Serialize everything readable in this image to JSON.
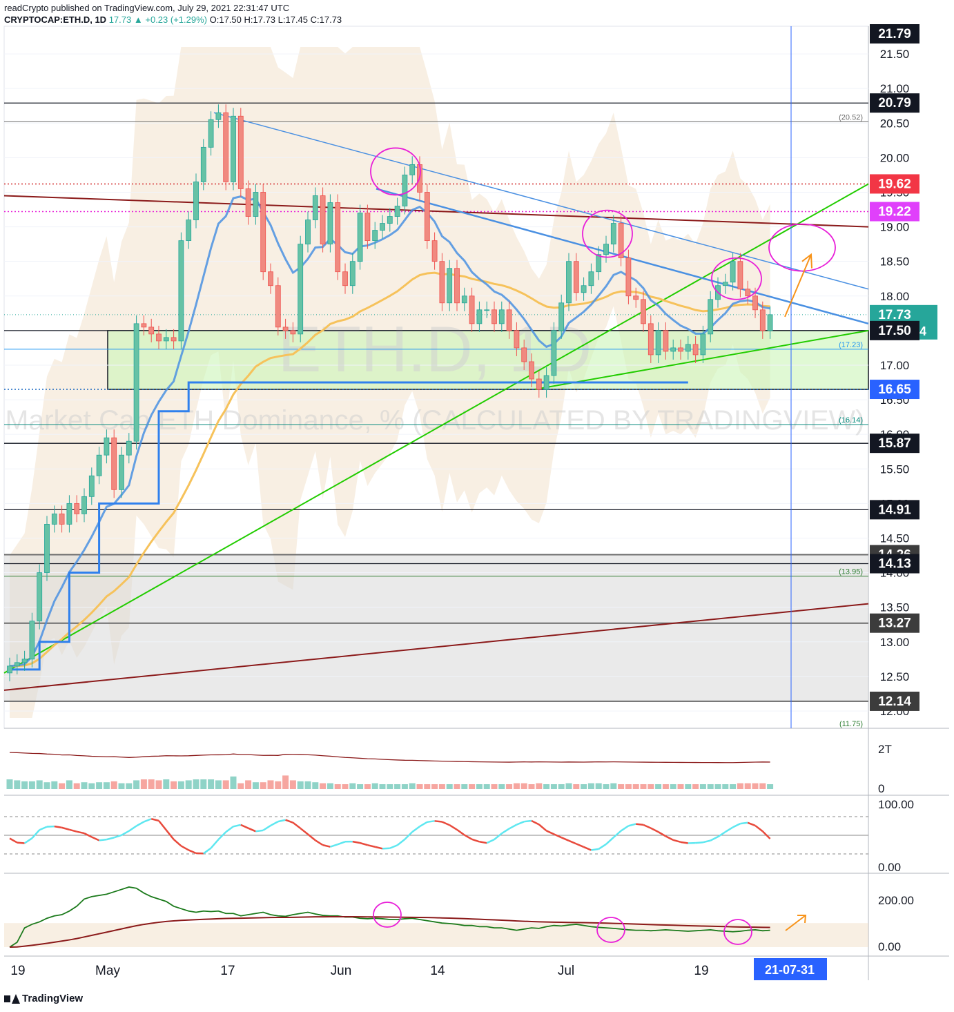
{
  "header": {
    "publisher_line": "readCrypto published on TradingView.com, July 29, 2021 22:31:47 UTC",
    "symbol": "CRYPTOCAP:ETH.D, 1D",
    "last": "17.73",
    "change": "+0.23 (+1.29%)",
    "ohlc": "O:17.50 H:17.73 L:17.45 C:17.73"
  },
  "watermark": {
    "symbol": "ETH.D, 1D",
    "description": "Market Cap ETH Dominance, % (CALCULATED BY TRADINGVIEW)"
  },
  "footer": {
    "brand": "TradingView"
  },
  "colors": {
    "up": "#26a69a",
    "down": "#ef5350",
    "green_line": "#22cc00",
    "blue_line": "#4a90e2",
    "dark_red_line": "#8b1a1a",
    "magenta": "#e81ed8",
    "orange": "#f7931a"
  },
  "chart_data": [
    {
      "type": "candlestick",
      "title": "CRYPTOCAP:ETH.D, 1D",
      "x_tick_labels": [
        "19",
        "May",
        "17",
        "Jun",
        "14",
        "Jul",
        "19",
        "21-07-31"
      ],
      "y_tick_labels": [
        "12.00",
        "12.50",
        "13.00",
        "13.50",
        "14.00",
        "14.50",
        "15.00",
        "15.50",
        "16.00",
        "16.50",
        "17.00",
        "17.50",
        "18.00",
        "18.50",
        "19.00",
        "19.50",
        "20.00",
        "20.50",
        "21.00",
        "21.50"
      ],
      "ylim": [
        11.75,
        21.9
      ],
      "price_labels": [
        {
          "value": 21.79,
          "text": "21.79",
          "style": "black"
        },
        {
          "value": 20.79,
          "text": "20.79",
          "style": "black"
        },
        {
          "value": 19.62,
          "text": "19.62",
          "style": "red"
        },
        {
          "value": 19.22,
          "text": "19.22",
          "style": "magenta"
        },
        {
          "value": 17.73,
          "text": "17.73",
          "style": "teal",
          "countdown": "01:28:14"
        },
        {
          "value": 17.5,
          "text": "17.50",
          "style": "black"
        },
        {
          "value": 16.65,
          "text": "16.65",
          "style": "blue"
        },
        {
          "value": 15.87,
          "text": "15.87",
          "style": "black"
        },
        {
          "value": 14.91,
          "text": "14.91",
          "style": "black"
        },
        {
          "value": 14.26,
          "text": "14.26",
          "style": "gray"
        },
        {
          "value": 14.13,
          "text": "14.13",
          "style": "black"
        },
        {
          "value": 13.27,
          "text": "13.27",
          "style": "gray"
        },
        {
          "value": 12.14,
          "text": "12.14",
          "style": "gray"
        }
      ],
      "level_notes": [
        {
          "value": 20.52,
          "text": "(20.52)"
        },
        {
          "value": 17.23,
          "text": "(17.23)"
        },
        {
          "value": 16.14,
          "text": "(16.14)"
        },
        {
          "value": 13.95,
          "text": "(13.95)"
        },
        {
          "value": 11.75,
          "text": "(11.75)"
        }
      ],
      "candles_close": [
        12.65,
        12.7,
        12.75,
        13.3,
        14.0,
        14.7,
        14.85,
        14.7,
        15.0,
        14.85,
        15.1,
        15.4,
        15.7,
        15.95,
        15.2,
        15.7,
        15.9,
        17.6,
        17.55,
        17.45,
        17.35,
        17.4,
        17.35,
        18.8,
        19.1,
        19.65,
        20.15,
        20.55,
        20.65,
        19.65,
        20.6,
        19.55,
        19.15,
        19.5,
        18.35,
        18.15,
        17.55,
        17.5,
        17.45,
        18.75,
        19.1,
        19.45,
        18.75,
        19.35,
        18.35,
        18.15,
        18.5,
        19.2,
        18.8,
        18.95,
        19.05,
        19.15,
        19.3,
        19.75,
        19.9,
        19.5,
        18.8,
        18.5,
        17.9,
        18.4,
        17.9,
        18.0,
        17.6,
        17.8,
        17.8,
        17.6,
        17.8,
        17.5,
        17.25,
        17.05,
        16.8,
        16.65,
        16.85,
        17.5,
        17.9,
        18.5,
        18.05,
        18.15,
        18.35,
        18.6,
        18.75,
        19.05,
        18.55,
        18.0,
        17.95,
        17.6,
        17.15,
        17.5,
        17.2,
        17.25,
        17.2,
        17.3,
        17.15,
        17.45,
        17.95,
        18.15,
        18.2,
        18.5,
        18.1,
        18.0,
        17.8,
        17.5,
        17.73
      ],
      "overlays": [
        "trend-lines",
        "bands",
        "support-box",
        "step-line",
        "emas"
      ]
    },
    {
      "type": "bar",
      "title": "",
      "y_tick_labels": [
        "2T",
        "0"
      ],
      "series": [
        {
          "values": [
            1.0,
            0.9,
            0.8,
            0.8,
            0.9,
            0.7,
            0.8,
            0.6,
            0.9,
            0.6,
            0.7,
            0.6,
            0.7,
            0.7,
            0.8,
            0.6,
            0.6,
            0.9,
            1.0,
            1.0,
            0.9,
            1.0,
            0.8,
            0.8,
            0.9,
            1.0,
            1.0,
            1.0,
            0.9,
            0.9,
            1.3,
            0.6,
            0.9,
            0.7,
            0.7,
            0.9,
            0.8,
            1.4,
            0.9,
            0.8,
            0.8,
            0.7,
            0.6,
            0.6,
            0.5,
            0.5,
            0.6,
            0.5,
            0.5,
            0.6,
            0.5,
            0.5,
            0.5,
            0.5,
            0.6,
            0.5,
            0.5,
            0.5,
            0.5,
            0.5,
            0.5,
            0.5,
            0.5,
            0.5,
            0.5,
            0.5,
            0.5,
            0.5,
            0.6,
            0.6,
            0.5,
            0.6,
            0.5,
            0.5,
            0.5,
            0.6,
            0.5,
            0.5,
            0.6,
            0.6,
            0.5,
            0.6,
            0.5,
            0.5,
            0.5,
            0.5,
            0.5,
            0.5,
            0.5,
            0.5,
            0.5,
            0.5,
            0.5,
            0.5,
            0.5,
            0.5,
            0.5,
            0.5,
            0.6,
            0.6,
            0.6,
            0.6,
            0.5
          ]
        }
      ]
    },
    {
      "type": "line",
      "title": "",
      "y_tick_labels": [
        "100.00",
        "0.00"
      ],
      "ylim": [
        0,
        100
      ],
      "series": [
        {
          "values": [
            45,
            30,
            36,
            55,
            75,
            70,
            65,
            60,
            55,
            52,
            50,
            40,
            35,
            45,
            50,
            55,
            65,
            75,
            80,
            82,
            70,
            40,
            25,
            20,
            18,
            15,
            20,
            40,
            60,
            70,
            75,
            70,
            55,
            50,
            60,
            75,
            80,
            78,
            65,
            50,
            40,
            30,
            25,
            28,
            40,
            45,
            40,
            35,
            30,
            28,
            25,
            30,
            40,
            55,
            70,
            75,
            80,
            75,
            70,
            60,
            50,
            40,
            35,
            35,
            35,
            50,
            65,
            70,
            75,
            78,
            75,
            60,
            45,
            45,
            40,
            35,
            30,
            25,
            20,
            30,
            45,
            60,
            70,
            75,
            72,
            65,
            55,
            48,
            40,
            35,
            35,
            35,
            38,
            40,
            45,
            55,
            65,
            72,
            76,
            72,
            60,
            45,
            30
          ]
        }
      ]
    },
    {
      "type": "line",
      "title": "",
      "y_tick_labels": [
        "200.00",
        "0.00"
      ],
      "series": [
        {
          "values": [
            0,
            20,
            80,
            95,
            105,
            120,
            130,
            135,
            150,
            170,
            200,
            210,
            215,
            220,
            230,
            240,
            250,
            245,
            225,
            210,
            200,
            190,
            170,
            160,
            150,
            145,
            150,
            148,
            150,
            140,
            140,
            130,
            135,
            140,
            145,
            135,
            130,
            128,
            135,
            140,
            145,
            138,
            132,
            130,
            130,
            125,
            125,
            120,
            118,
            120,
            118,
            115,
            115,
            118,
            120,
            115,
            110,
            105,
            100,
            98,
            95,
            90,
            90,
            85,
            85,
            80,
            80,
            75,
            70,
            75,
            80,
            78,
            85,
            90,
            88,
            92,
            95,
            90,
            85,
            82,
            80,
            78,
            75,
            72,
            70,
            70,
            68,
            70,
            72,
            70,
            68,
            66,
            68,
            70,
            72,
            68,
            66,
            64,
            66,
            70,
            72,
            68,
            70
          ]
        }
      ]
    }
  ]
}
